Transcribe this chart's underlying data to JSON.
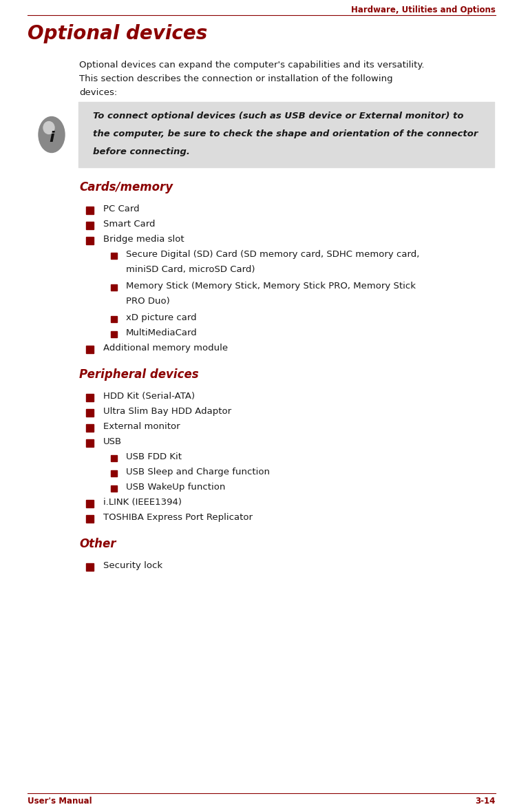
{
  "header_text": "Hardware, Utilities and Options",
  "header_color": "#8B0000",
  "title": "Optional devices",
  "title_color": "#8B0000",
  "title_fontsize": 20,
  "header_line_color": "#8B0000",
  "footer_line_color": "#8B0000",
  "footer_left": "User's Manual",
  "footer_right": "3-14",
  "footer_color": "#8B0000",
  "body_line1": "Optional devices can expand the computer's capabilities and its versatility.",
  "body_line2": "This section describes the connection or installation of the following",
  "body_line3": "devices:",
  "note_line1": "To connect optional devices (such as USB device or External monitor) to",
  "note_line2": "the computer, be sure to check the shape and orientation of the connector",
  "note_line3": "before connecting.",
  "note_bg": "#DCDCDC",
  "section1_title": "Cards/memory",
  "section2_title": "Peripheral devices",
  "section3_title": "Other",
  "section_title_color": "#8B0000",
  "bullet_color": "#8B0000",
  "text_color": "#1a1a1a",
  "items_cards": [
    {
      "text": "PC Card",
      "line2": "",
      "level": 1
    },
    {
      "text": "Smart Card",
      "line2": "",
      "level": 1
    },
    {
      "text": "Bridge media slot",
      "line2": "",
      "level": 1
    },
    {
      "text": "Secure Digital (SD) Card (SD memory card, SDHC memory card,",
      "line2": "miniSD Card, microSD Card)",
      "level": 2
    },
    {
      "text": "Memory Stick (Memory Stick, Memory Stick PRO, Memory Stick",
      "line2": "PRO Duo)",
      "level": 2
    },
    {
      "text": "xD picture card",
      "line2": "",
      "level": 2
    },
    {
      "text": "MultiMediaCard",
      "line2": "",
      "level": 2
    },
    {
      "text": "Additional memory module",
      "line2": "",
      "level": 1
    }
  ],
  "items_peripheral": [
    {
      "text": "HDD Kit (Serial-ATA)",
      "level": 1
    },
    {
      "text": "Ultra Slim Bay HDD Adaptor",
      "level": 1
    },
    {
      "text": "External monitor",
      "level": 1
    },
    {
      "text": "USB",
      "level": 1
    },
    {
      "text": "USB FDD Kit",
      "level": 2
    },
    {
      "text": "USB Sleep and Charge function",
      "level": 2
    },
    {
      "text": "USB WakeUp function",
      "level": 2
    },
    {
      "text": "i.LINK (IEEE1394)",
      "level": 1
    },
    {
      "text": "TOSHIBA Express Port Replicator",
      "level": 1
    }
  ],
  "items_other": [
    {
      "text": "Security lock",
      "level": 1
    }
  ]
}
